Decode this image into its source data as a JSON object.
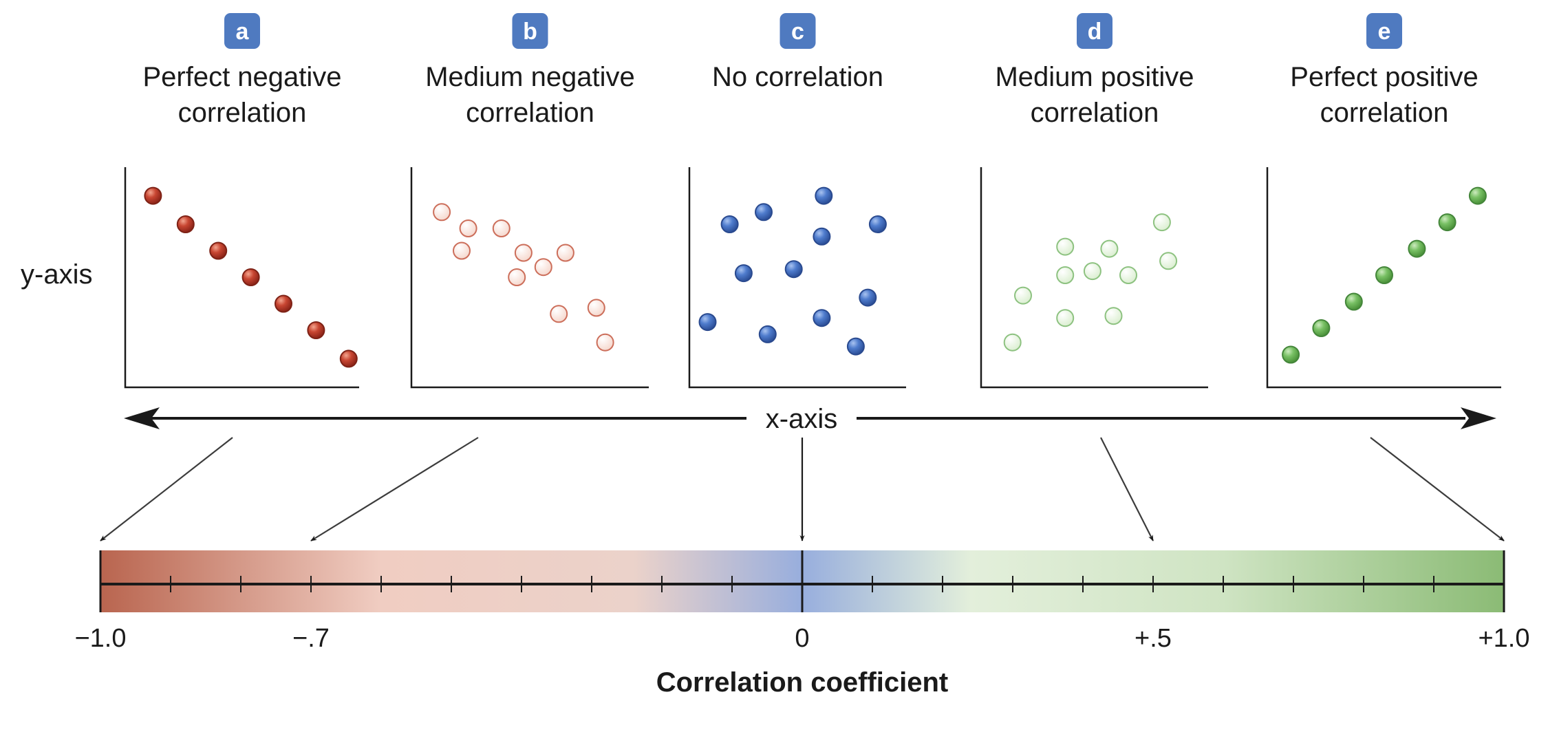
{
  "chart_data": {
    "type": "scatter",
    "figure_labels": {
      "y_axis": "y-axis",
      "x_axis": "x-axis",
      "scale_title": "Correlation coefficient"
    },
    "panels": [
      {
        "letter": "a",
        "title_lines": [
          "Perfect negative",
          "correlation"
        ],
        "coefficient": -1.0,
        "marker_style": "red-solid",
        "points": [
          [
            0.09,
            0.9
          ],
          [
            0.24,
            0.76
          ],
          [
            0.39,
            0.63
          ],
          [
            0.54,
            0.5
          ],
          [
            0.69,
            0.37
          ],
          [
            0.84,
            0.24
          ],
          [
            0.99,
            0.1
          ]
        ]
      },
      {
        "letter": "b",
        "title_lines": [
          "Medium negative",
          "correlation"
        ],
        "coefficient": -0.7,
        "marker_style": "red-light",
        "points": [
          [
            0.1,
            0.82
          ],
          [
            0.22,
            0.74
          ],
          [
            0.37,
            0.74
          ],
          [
            0.19,
            0.63
          ],
          [
            0.47,
            0.62
          ],
          [
            0.66,
            0.62
          ],
          [
            0.56,
            0.55
          ],
          [
            0.44,
            0.5
          ],
          [
            0.63,
            0.32
          ],
          [
            0.8,
            0.35
          ],
          [
            0.84,
            0.18
          ]
        ]
      },
      {
        "letter": "c",
        "title_lines": [
          "No correlation"
        ],
        "coefficient": 0,
        "marker_style": "blue-solid",
        "points": [
          [
            0.63,
            0.9
          ],
          [
            0.33,
            0.82
          ],
          [
            0.16,
            0.76
          ],
          [
            0.9,
            0.76
          ],
          [
            0.62,
            0.7
          ],
          [
            0.48,
            0.54
          ],
          [
            0.23,
            0.52
          ],
          [
            0.85,
            0.4
          ],
          [
            0.05,
            0.28
          ],
          [
            0.62,
            0.3
          ],
          [
            0.35,
            0.22
          ],
          [
            0.79,
            0.16
          ]
        ]
      },
      {
        "letter": "d",
        "title_lines": [
          "Medium positive",
          "correlation"
        ],
        "coefficient": 0.5,
        "marker_style": "green-light",
        "points": [
          [
            0.82,
            0.77
          ],
          [
            0.36,
            0.65
          ],
          [
            0.57,
            0.64
          ],
          [
            0.85,
            0.58
          ],
          [
            0.49,
            0.53
          ],
          [
            0.36,
            0.51
          ],
          [
            0.66,
            0.51
          ],
          [
            0.16,
            0.41
          ],
          [
            0.36,
            0.3
          ],
          [
            0.59,
            0.31
          ],
          [
            0.11,
            0.18
          ]
        ]
      },
      {
        "letter": "e",
        "title_lines": [
          "Perfect positive",
          "correlation"
        ],
        "coefficient": 1.0,
        "marker_style": "green-solid",
        "points": [
          [
            0.07,
            0.12
          ],
          [
            0.21,
            0.25
          ],
          [
            0.36,
            0.38
          ],
          [
            0.5,
            0.51
          ],
          [
            0.65,
            0.64
          ],
          [
            0.79,
            0.77
          ],
          [
            0.93,
            0.9
          ]
        ]
      }
    ],
    "scale": {
      "min": -1.0,
      "max": 1.0,
      "tick_step": 0.1,
      "labeled_ticks": [
        {
          "value": -1.0,
          "label": "−1.0"
        },
        {
          "value": -0.7,
          "label": "−.7"
        },
        {
          "value": 0,
          "label": "0"
        },
        {
          "value": 0.5,
          "label": "+.5"
        },
        {
          "value": 1.0,
          "label": "+1.0"
        }
      ],
      "gradient_colors": [
        "#b9654f",
        "#f0cdc2",
        "#98aedd",
        "#e3efdb",
        "#8bbb75"
      ]
    },
    "colors": {
      "badge": "#4f7ac0",
      "axis": "#1a1a1a",
      "red_solid_fill": "#bb3b2c",
      "red_light_fill": "#f8e3dc",
      "red_light_stroke": "#cc6e5a",
      "blue_fill": "#4673c4",
      "green_light_fill": "#e8f4e0",
      "green_light_stroke": "#8dc280",
      "green_solid_fill": "#6bb558"
    }
  }
}
